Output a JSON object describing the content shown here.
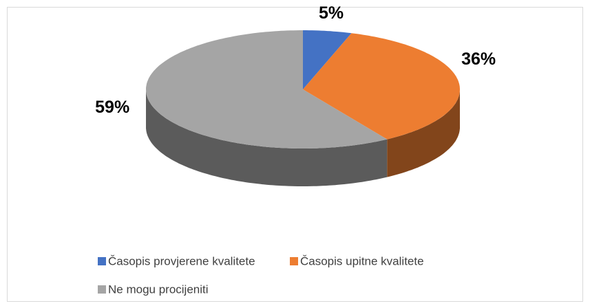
{
  "chart_data": {
    "type": "pie3d",
    "categories": [
      "Časopis provjerene kvalitete",
      "Časopis upitne kvalitete",
      "Ne mogu procijeniti"
    ],
    "values": [
      5,
      36,
      59
    ],
    "value_labels": [
      "5%",
      "36%",
      "59%"
    ],
    "colors": [
      "#4472c4",
      "#ed7d31",
      "#a5a5a5"
    ],
    "legend": "bottom"
  }
}
